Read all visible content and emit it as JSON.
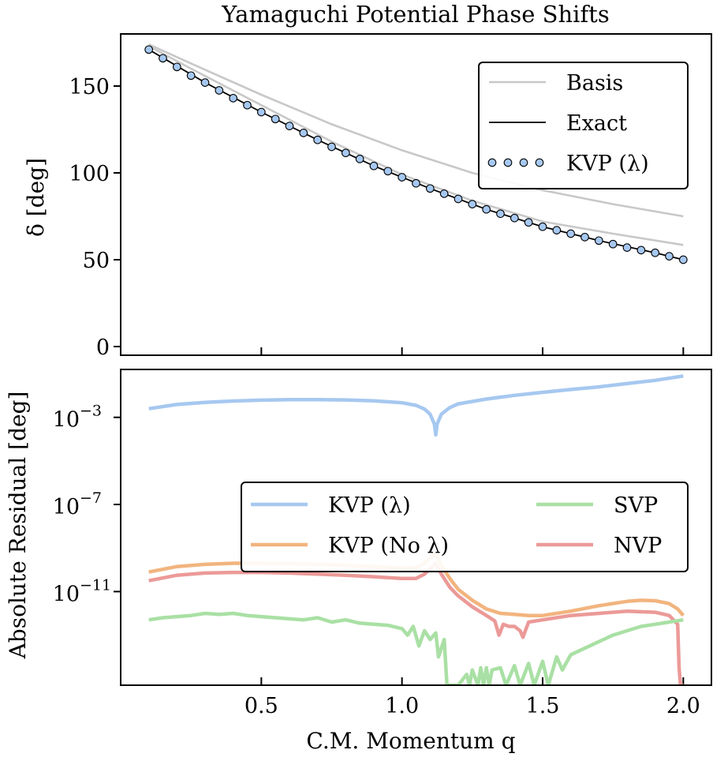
{
  "chart_data": [
    {
      "type": "line",
      "title": "Yamaguchi Potential Phase Shifts",
      "ylabel": "δ [deg]",
      "xlabel": "",
      "xlim": [
        0.0,
        2.1
      ],
      "ylim": [
        -5,
        180
      ],
      "yticks": [
        0,
        50,
        100,
        150
      ],
      "xticks": [
        0.5,
        1.0,
        1.5,
        2.0
      ],
      "show_xtick_labels": false,
      "legend": {
        "position": "top-right",
        "entries": [
          {
            "label": "Basis",
            "style": "line",
            "color": "#c8c8c8"
          },
          {
            "label": "Exact",
            "style": "line",
            "color": "#000000"
          },
          {
            "label": "KVP (λ)",
            "style": "markers",
            "color": "#a6c8f0"
          }
        ]
      },
      "series": [
        {
          "name": "Basis",
          "role": "basis",
          "color": "#c8c8c8",
          "x": [
            0.1,
            0.25,
            0.5,
            0.75,
            1.0,
            1.25,
            1.5,
            1.75,
            2.0
          ],
          "y": [
            174,
            163,
            145,
            128,
            113,
            100,
            90,
            82,
            75
          ]
        },
        {
          "name": "Basis",
          "role": "basis",
          "color": "#c8c8c8",
          "x": [
            0.1,
            0.25,
            0.5,
            0.75,
            1.0,
            1.25,
            1.5,
            1.75,
            2.0
          ],
          "y": [
            173,
            160,
            139,
            118,
            99,
            84,
            72,
            65,
            58.5
          ]
        },
        {
          "name": "Exact",
          "role": "exact",
          "color": "#000000",
          "x": [
            0.1,
            0.3,
            0.5,
            0.7,
            0.9,
            1.1,
            1.3,
            1.5,
            1.7,
            1.9,
            2.0
          ],
          "y": [
            171,
            152,
            135,
            119,
            104,
            91,
            79,
            69,
            61,
            54,
            50
          ]
        },
        {
          "name": "KVP (λ)",
          "role": "kvp",
          "color": "#a6c8f0",
          "x": [
            0.1,
            0.15,
            0.2,
            0.25,
            0.3,
            0.35,
            0.4,
            0.45,
            0.5,
            0.55,
            0.6,
            0.65,
            0.7,
            0.75,
            0.8,
            0.85,
            0.9,
            0.95,
            1.0,
            1.05,
            1.1,
            1.15,
            1.2,
            1.25,
            1.3,
            1.35,
            1.4,
            1.45,
            1.5,
            1.55,
            1.6,
            1.65,
            1.7,
            1.75,
            1.8,
            1.85,
            1.9,
            1.95,
            2.0
          ],
          "y": [
            171,
            166,
            161,
            156,
            152,
            147.5,
            143,
            139,
            135,
            131,
            127,
            123,
            119,
            115,
            111.5,
            108,
            104,
            101,
            97.5,
            94,
            91,
            88,
            85,
            82,
            79,
            76.5,
            74,
            71.5,
            69,
            67,
            65,
            63,
            61,
            59,
            57,
            55.5,
            54,
            52,
            50
          ]
        }
      ]
    },
    {
      "type": "line",
      "title": "",
      "ylabel": "Absolute Residual [deg]",
      "xlabel": "C.M. Momentum q",
      "yscale": "log",
      "xlim": [
        0.0,
        2.1
      ],
      "ylim_log10": [
        -15.3,
        -0.8
      ],
      "yticks_log10": [
        -3,
        -7,
        -11
      ],
      "ytick_labels": [
        "10",
        "10",
        "10"
      ],
      "ytick_exponents": [
        "−3",
        "−7",
        "−11"
      ],
      "xticks": [
        0.5,
        1.0,
        1.5,
        2.0
      ],
      "xtick_labels": [
        "0.5",
        "1.0",
        "1.5",
        "2.0"
      ],
      "legend": {
        "position": "center-right",
        "columns": 2,
        "entries": [
          {
            "label": "KVP (λ)",
            "color": "#a6c8f0"
          },
          {
            "label": "KVP (No λ)",
            "color": "#f2b47e"
          },
          {
            "label": "SVP",
            "color": "#a9e0a4"
          },
          {
            "label": "NVP",
            "color": "#eb9a98"
          }
        ]
      },
      "series": [
        {
          "name": "KVP (λ)",
          "color": "#a6c8f0",
          "x": [
            0.1,
            0.2,
            0.3,
            0.4,
            0.5,
            0.6,
            0.7,
            0.8,
            0.9,
            1.0,
            1.05,
            1.08,
            1.1,
            1.115,
            1.12,
            1.125,
            1.14,
            1.17,
            1.2,
            1.3,
            1.4,
            1.5,
            1.6,
            1.7,
            1.8,
            1.9,
            2.0
          ],
          "y_log10": [
            -2.6,
            -2.41,
            -2.31,
            -2.25,
            -2.21,
            -2.19,
            -2.19,
            -2.2,
            -2.24,
            -2.33,
            -2.45,
            -2.62,
            -2.85,
            -3.3,
            -3.8,
            -3.3,
            -2.85,
            -2.55,
            -2.38,
            -2.16,
            -1.99,
            -1.85,
            -1.72,
            -1.6,
            -1.45,
            -1.3,
            -1.1
          ]
        },
        {
          "name": "KVP (No λ)",
          "color": "#f2b47e",
          "x": [
            0.1,
            0.2,
            0.3,
            0.4,
            0.5,
            0.6,
            0.7,
            0.8,
            0.9,
            1.0,
            1.05,
            1.08,
            1.1,
            1.12,
            1.14,
            1.17,
            1.2,
            1.25,
            1.3,
            1.35,
            1.4,
            1.45,
            1.5,
            1.6,
            1.7,
            1.8,
            1.85,
            1.9,
            1.95,
            1.98,
            2.0
          ],
          "y_log10": [
            -10.1,
            -9.85,
            -9.75,
            -9.7,
            -9.7,
            -9.72,
            -9.75,
            -9.8,
            -9.85,
            -9.92,
            -9.9,
            -9.7,
            -9.45,
            -9.25,
            -9.8,
            -10.4,
            -10.9,
            -11.4,
            -11.8,
            -12.0,
            -12.05,
            -12.1,
            -12.1,
            -11.9,
            -11.65,
            -11.45,
            -11.4,
            -11.42,
            -11.55,
            -11.8,
            -12.1
          ]
        },
        {
          "name": "NVP",
          "color": "#eb9a98",
          "x": [
            0.1,
            0.2,
            0.3,
            0.4,
            0.5,
            0.6,
            0.7,
            0.8,
            0.9,
            1.0,
            1.05,
            1.08,
            1.1,
            1.12,
            1.14,
            1.17,
            1.2,
            1.25,
            1.3,
            1.33,
            1.345,
            1.36,
            1.38,
            1.4,
            1.42,
            1.43,
            1.45,
            1.5,
            1.6,
            1.7,
            1.8,
            1.9,
            1.95,
            1.98,
            1.985,
            1.99,
            2.0
          ],
          "y_log10": [
            -10.5,
            -10.25,
            -10.15,
            -10.12,
            -10.12,
            -10.15,
            -10.2,
            -10.25,
            -10.32,
            -10.4,
            -10.4,
            -10.2,
            -9.95,
            -9.7,
            -10.2,
            -10.8,
            -11.2,
            -11.7,
            -12.1,
            -12.35,
            -13.0,
            -12.5,
            -12.6,
            -12.6,
            -12.8,
            -13.1,
            -12.4,
            -12.3,
            -12.1,
            -12.0,
            -11.9,
            -11.95,
            -12.1,
            -12.5,
            -14.5,
            -15.3,
            -15.3
          ]
        },
        {
          "name": "SVP",
          "color": "#a9e0a4",
          "x": [
            0.1,
            0.15,
            0.2,
            0.25,
            0.3,
            0.35,
            0.4,
            0.45,
            0.5,
            0.55,
            0.6,
            0.65,
            0.7,
            0.75,
            0.8,
            0.85,
            0.9,
            0.95,
            1.0,
            1.02,
            1.04,
            1.06,
            1.08,
            1.1,
            1.12,
            1.13,
            1.15,
            1.16,
            1.165,
            1.17,
            1.2,
            1.23,
            1.24,
            1.25,
            1.27,
            1.28,
            1.29,
            1.3,
            1.31,
            1.32,
            1.35,
            1.37,
            1.4,
            1.42,
            1.45,
            1.47,
            1.5,
            1.52,
            1.55,
            1.57,
            1.6,
            1.65,
            1.7,
            1.75,
            1.8,
            1.85,
            1.9,
            1.95,
            2.0
          ],
          "y_log10": [
            -12.3,
            -12.2,
            -12.15,
            -12.1,
            -12.0,
            -12.05,
            -12.0,
            -12.1,
            -12.15,
            -12.2,
            -12.25,
            -12.3,
            -12.2,
            -12.4,
            -12.3,
            -12.45,
            -12.5,
            -12.55,
            -12.7,
            -13.0,
            -12.6,
            -13.5,
            -12.8,
            -13.2,
            -12.9,
            -14.0,
            -13.2,
            -15.3,
            -15.3,
            -15.3,
            -15.3,
            -14.8,
            -15.3,
            -14.6,
            -15.3,
            -14.5,
            -15.3,
            -14.5,
            -15.3,
            -14.6,
            -14.5,
            -15.3,
            -14.4,
            -15.3,
            -14.3,
            -15.3,
            -14.2,
            -15.3,
            -14.0,
            -14.6,
            -13.9,
            -13.6,
            -13.3,
            -13.0,
            -12.8,
            -12.6,
            -12.5,
            -12.4,
            -12.3
          ]
        }
      ]
    }
  ]
}
